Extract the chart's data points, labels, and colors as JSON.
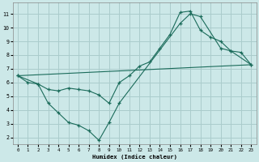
{
  "xlabel": "Humidex (Indice chaleur)",
  "bg_color": "#cce8e8",
  "grid_color": "#aacccc",
  "line_color": "#1a6b5a",
  "xlim": [
    -0.5,
    23.5
  ],
  "ylim": [
    1.5,
    11.8
  ],
  "xticks": [
    0,
    1,
    2,
    3,
    4,
    5,
    6,
    7,
    8,
    9,
    10,
    11,
    12,
    13,
    14,
    15,
    16,
    17,
    18,
    19,
    20,
    21,
    22,
    23
  ],
  "yticks": [
    2,
    3,
    4,
    5,
    6,
    7,
    8,
    9,
    10,
    11
  ],
  "line1_x": [
    0,
    1,
    2,
    3,
    4,
    5,
    6,
    7,
    8,
    9,
    10,
    11,
    12,
    13,
    14,
    15,
    16,
    17,
    18,
    19,
    20,
    21,
    22,
    23
  ],
  "line1_y": [
    6.5,
    6.0,
    5.9,
    5.5,
    5.4,
    5.6,
    5.5,
    5.4,
    5.1,
    4.5,
    6.0,
    6.5,
    7.2,
    7.5,
    8.5,
    9.5,
    11.1,
    11.2,
    9.8,
    9.3,
    9.0,
    8.3,
    8.2,
    7.3
  ],
  "line2_x": [
    0,
    2,
    3,
    4,
    5,
    6,
    7,
    8,
    9,
    10,
    16,
    17,
    18,
    20,
    21,
    23
  ],
  "line2_y": [
    6.5,
    5.9,
    4.5,
    3.8,
    3.1,
    2.9,
    2.5,
    1.8,
    3.1,
    4.5,
    10.3,
    11.0,
    10.8,
    8.5,
    8.3,
    7.3
  ],
  "line3_x": [
    0,
    23
  ],
  "line3_y": [
    6.5,
    7.3
  ]
}
